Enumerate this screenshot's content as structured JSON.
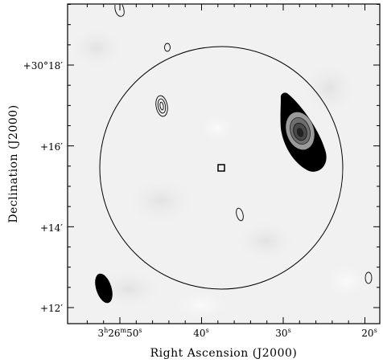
{
  "chart_data": {
    "type": "contour",
    "xlabel": "Right Ascension (J2000)",
    "ylabel": "Declination (J2000)",
    "x_ticks": [
      {
        "h": "3",
        "m": "26",
        "s": "50",
        "label": "3h26m50s"
      },
      {
        "s": "40",
        "label": "40s"
      },
      {
        "s": "30",
        "label": "30s"
      },
      {
        "s": "20",
        "label": "20s"
      }
    ],
    "y_ticks": [
      {
        "label": "+30°18′"
      },
      {
        "label": "+16′"
      },
      {
        "label": "+14′"
      },
      {
        "label": "+12′"
      }
    ],
    "xlim_ra_seconds": [
      55.0,
      19.5
    ],
    "ylim_dec_arcmin": [
      11.6,
      19.5
    ],
    "field_circle": {
      "center_ra_s": 37.5,
      "center_dec_arcmin": 15.5,
      "radius_arcmin": 3.0
    },
    "pointing_center_marker": {
      "ra_s": 37.5,
      "dec_arcmin": 15.5
    },
    "beam_ellipse": {
      "ra_s": 52.5,
      "dec_arcmin": 12.5
    },
    "sources": [
      {
        "id": "bright-source",
        "ra_s": 28.8,
        "dec_arcmin": 16.4,
        "filled": true
      },
      {
        "id": "source-a",
        "ra_s": 44.5,
        "dec_arcmin": 17.0,
        "filled": false
      },
      {
        "id": "source-b",
        "ra_s": 35.0,
        "dec_arcmin": 14.3,
        "filled": false
      },
      {
        "id": "source-c",
        "ra_s": 44.0,
        "dec_arcmin": 18.5,
        "filled": false
      },
      {
        "id": "source-d",
        "ra_s": 50.0,
        "dec_arcmin": 19.4,
        "filled": false
      },
      {
        "id": "source-e",
        "ra_s": 20.5,
        "dec_arcmin": 12.7,
        "filled": false
      }
    ],
    "grid": false,
    "colormap": "greyscale"
  }
}
